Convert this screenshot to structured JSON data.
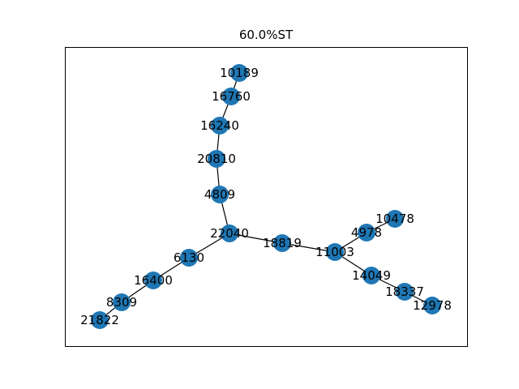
{
  "title": "60.0%ST",
  "node_color": "#1f77b4",
  "edge_color": "#000000",
  "nodes": [
    {
      "id": "10189"
    },
    {
      "id": "16760"
    },
    {
      "id": "16240"
    },
    {
      "id": "20810"
    },
    {
      "id": "4809"
    },
    {
      "id": "22040"
    },
    {
      "id": "18819"
    },
    {
      "id": "11003"
    },
    {
      "id": "4978"
    },
    {
      "id": "10478"
    },
    {
      "id": "14049"
    },
    {
      "id": "18337"
    },
    {
      "id": "12978"
    },
    {
      "id": "6130"
    },
    {
      "id": "16400"
    },
    {
      "id": "8309"
    },
    {
      "id": "21822"
    }
  ],
  "edges": [
    [
      "10189",
      "16760"
    ],
    [
      "16760",
      "16240"
    ],
    [
      "16240",
      "20810"
    ],
    [
      "20810",
      "4809"
    ],
    [
      "4809",
      "22040"
    ],
    [
      "22040",
      "18819"
    ],
    [
      "18819",
      "11003"
    ],
    [
      "11003",
      "4978"
    ],
    [
      "4978",
      "10478"
    ],
    [
      "11003",
      "14049"
    ],
    [
      "14049",
      "18337"
    ],
    [
      "18337",
      "12978"
    ],
    [
      "22040",
      "6130"
    ],
    [
      "6130",
      "16400"
    ],
    [
      "16400",
      "8309"
    ],
    [
      "8309",
      "21822"
    ]
  ]
}
